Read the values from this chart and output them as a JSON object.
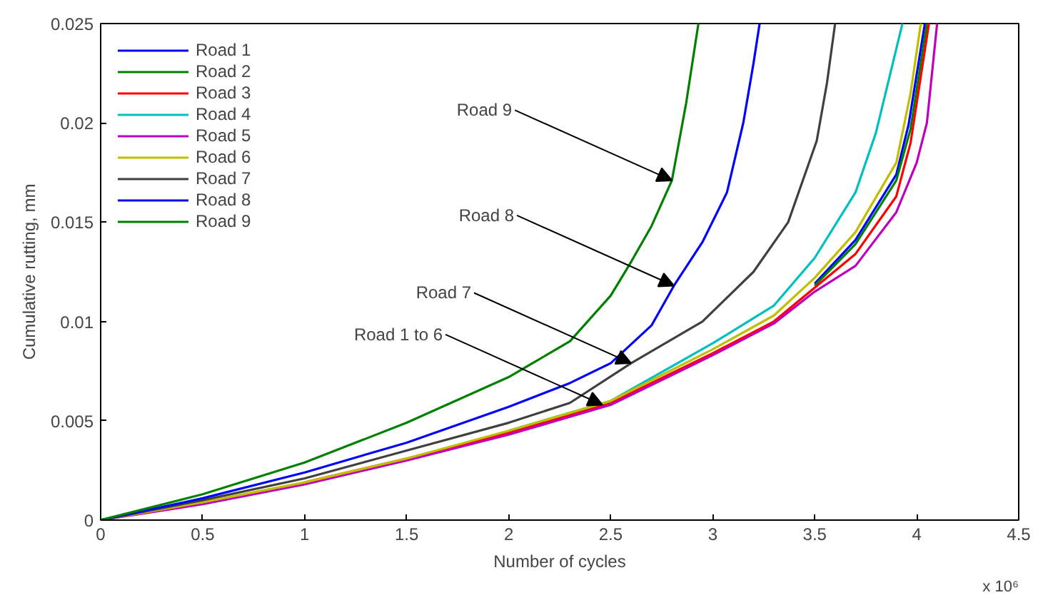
{
  "chart_data": {
    "type": "line",
    "xlabel": "Number of cycles",
    "ylabel": "Cumulative rutting, mm",
    "xlim": [
      0,
      4.5
    ],
    "xticks": [
      0,
      0.5,
      1,
      1.5,
      2,
      2.5,
      3,
      3.5,
      4,
      4.5
    ],
    "ylim": [
      0,
      0.025
    ],
    "yticks": [
      0,
      0.005,
      0.01,
      0.015,
      0.02,
      0.025
    ],
    "legend": "top left",
    "grid": false,
    "line_style": "solid",
    "annotations": [
      {
        "text": "Road 9",
        "x": 2.8,
        "y": 0.0171
      },
      {
        "text": "Road 8",
        "x": 2.81,
        "y": 0.0118
      },
      {
        "text": "Road 7",
        "x": 2.6,
        "y": 0.0079
      },
      {
        "text": "Road 1 to 6",
        "x": 2.46,
        "y": 0.0058
      },
      "x 10⁶"
    ],
    "series": [
      {
        "name": "Road 1",
        "color": "#0000ff",
        "x": [
          3.5,
          3.7,
          3.9,
          3.96,
          4.04
        ],
        "values": [
          0.0119,
          0.0141,
          0.0174,
          0.0199,
          0.025
        ]
      },
      {
        "name": "Road 2",
        "color": "#008000",
        "x": [
          3.5,
          3.7,
          3.9,
          3.97,
          4.05
        ],
        "values": [
          0.0118,
          0.0139,
          0.0171,
          0.0197,
          0.025
        ]
      },
      {
        "name": "Road 3",
        "color": "#ff0000",
        "x": [
          1,
          1.5,
          2,
          2.5,
          3,
          3.3,
          3.5,
          3.7,
          3.9,
          3.97,
          4.06
        ],
        "values": [
          0.0019,
          0.0031,
          0.0044,
          0.0059,
          0.0084,
          0.01,
          0.0117,
          0.0134,
          0.0163,
          0.019,
          0.025
        ]
      },
      {
        "name": "Road 4",
        "color": "#00bfbf",
        "x": [
          2,
          2.5,
          3,
          3.3,
          3.5,
          3.7,
          3.8,
          3.93
        ],
        "values": [
          0.0045,
          0.006,
          0.0089,
          0.0108,
          0.0132,
          0.0165,
          0.0195,
          0.025
        ]
      },
      {
        "name": "Road 5",
        "color": "#bf00bf",
        "x": [
          0,
          0.5,
          1,
          1.5,
          2,
          2.5,
          3,
          3.3,
          3.5,
          3.7,
          3.9,
          4.0,
          4.05,
          4.1
        ],
        "values": [
          0,
          0.0008,
          0.0018,
          0.003,
          0.0043,
          0.0058,
          0.0083,
          0.0099,
          0.0115,
          0.0128,
          0.0155,
          0.018,
          0.02,
          0.025
        ]
      },
      {
        "name": "Road 6",
        "color": "#bfbf00",
        "x": [
          0,
          0.5,
          1,
          1.5,
          2,
          2.5,
          3,
          3.3,
          3.5,
          3.7,
          3.9,
          3.97,
          4.02
        ],
        "values": [
          0,
          0.0009,
          0.0019,
          0.0031,
          0.0045,
          0.006,
          0.0086,
          0.0103,
          0.0122,
          0.0145,
          0.018,
          0.0215,
          0.025
        ]
      },
      {
        "name": "Road 7",
        "color": "#404040",
        "x": [
          0,
          0.5,
          1,
          1.5,
          2,
          2.3,
          2.6,
          2.95,
          3.2,
          3.37,
          3.51,
          3.56,
          3.6
        ],
        "values": [
          0,
          0.001,
          0.0021,
          0.0035,
          0.0049,
          0.0059,
          0.0079,
          0.01,
          0.0125,
          0.015,
          0.0191,
          0.022,
          0.025
        ]
      },
      {
        "name": "Road 8",
        "color": "#0000ff",
        "x": [
          0,
          0.5,
          1,
          1.5,
          2,
          2.3,
          2.5,
          2.7,
          2.81,
          2.95,
          3.07,
          3.15,
          3.2,
          3.23
        ],
        "values": [
          0,
          0.0011,
          0.0024,
          0.0039,
          0.0057,
          0.0069,
          0.0079,
          0.0098,
          0.0118,
          0.014,
          0.0165,
          0.02,
          0.023,
          0.025
        ]
      },
      {
        "name": "Road 9",
        "color": "#008000",
        "x": [
          0,
          0.5,
          1,
          1.5,
          2,
          2.3,
          2.5,
          2.6,
          2.7,
          2.8,
          2.87,
          2.93
        ],
        "values": [
          0,
          0.0013,
          0.0029,
          0.0049,
          0.0072,
          0.009,
          0.0113,
          0.013,
          0.0148,
          0.0171,
          0.021,
          0.025
        ]
      }
    ]
  }
}
